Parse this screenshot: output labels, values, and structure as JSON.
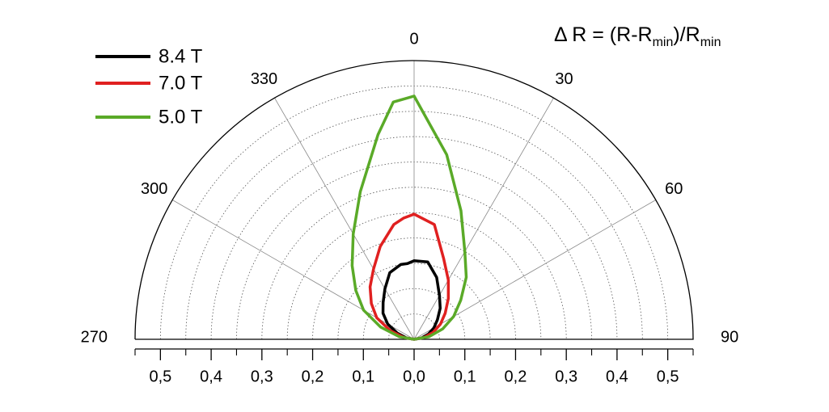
{
  "chart_data": {
    "type": "polar",
    "annotation": [
      "Δ R = (R-R",
      "min",
      ")/R",
      "min"
    ],
    "theta": [
      -90,
      -80,
      -70,
      -60,
      -50,
      -40,
      -30,
      -20,
      -10,
      -5,
      0,
      10,
      20,
      30,
      40,
      50,
      60,
      70,
      80,
      90
    ],
    "series": [
      {
        "name": "8.4 T",
        "color": "#000000",
        "values": [
          0,
          0.015,
          0.035,
          0.06,
          0.08,
          0.095,
          0.115,
          0.14,
          0.15,
          0.15,
          0.155,
          0.155,
          0.13,
          0.1,
          0.08,
          0.06,
          0.045,
          0.03,
          0.015,
          0
        ]
      },
      {
        "name": "7.0 T",
        "color": "#e02020",
        "values": [
          0,
          0.02,
          0.05,
          0.085,
          0.11,
          0.135,
          0.16,
          0.195,
          0.23,
          0.24,
          0.247,
          0.23,
          0.17,
          0.135,
          0.105,
          0.08,
          0.06,
          0.04,
          0.02,
          0
        ]
      },
      {
        "name": "5.0 T",
        "color": "#5aaa28",
        "values": [
          0,
          0.03,
          0.07,
          0.115,
          0.15,
          0.19,
          0.24,
          0.31,
          0.41,
          0.47,
          0.48,
          0.37,
          0.27,
          0.2,
          0.16,
          0.12,
          0.09,
          0.06,
          0.03,
          0
        ]
      }
    ],
    "thetaticks": [
      {
        "value": -90,
        "label": "270"
      },
      {
        "value": -60,
        "label": "300"
      },
      {
        "value": -30,
        "label": "330"
      },
      0,
      30,
      60,
      90
    ],
    "rlim": [
      0,
      0.55
    ],
    "rgrid": [
      0.05,
      0.1,
      0.15,
      0.2,
      0.25,
      0.3,
      0.35,
      0.4,
      0.45,
      0.5
    ],
    "xlim": [
      -0.55,
      0.55
    ],
    "xticks": [
      {
        "value": -0.5,
        "label": "0,5"
      },
      {
        "value": -0.4,
        "label": "0,4"
      },
      {
        "value": -0.3,
        "label": "0,3"
      },
      {
        "value": -0.2,
        "label": "0,2"
      },
      {
        "value": -0.1,
        "label": "0,1"
      },
      {
        "value": 0,
        "label": "0,0"
      },
      {
        "value": 0.1,
        "label": "0,1"
      },
      {
        "value": 0.2,
        "label": "0,2"
      },
      {
        "value": 0.3,
        "label": "0,3"
      },
      {
        "value": 0.4,
        "label": "0,4"
      },
      {
        "value": 0.5,
        "label": "0,5"
      }
    ],
    "legend": "upper left"
  }
}
